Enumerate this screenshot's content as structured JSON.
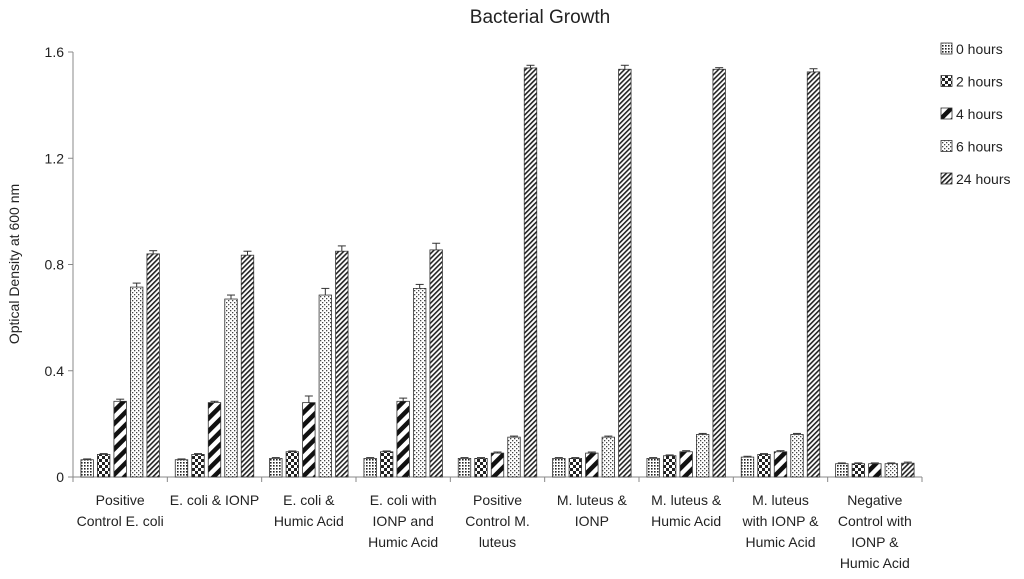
{
  "chart_data": {
    "type": "bar",
    "title": "Bacterial Growth",
    "xlabel": "",
    "ylabel": "Optical Density at 600 nm",
    "ylim": [
      0,
      1.6
    ],
    "yticks": [
      0,
      0.4,
      0.8,
      1.2,
      1.6
    ],
    "ytick_labels": [
      "0",
      "0.4",
      "0.8",
      "1.2",
      "1.6"
    ],
    "grid": false,
    "legend_position": "top-right",
    "categories": [
      [
        "Positive",
        "Control E. coli"
      ],
      [
        "E. coli & IONP"
      ],
      [
        "E. coli &",
        "Humic Acid"
      ],
      [
        "E. coli with",
        "IONP and",
        "Humic Acid"
      ],
      [
        "Positive",
        "Control M.",
        "luteus"
      ],
      [
        "M. luteus &",
        "IONP"
      ],
      [
        "M. luteus &",
        "Humic Acid"
      ],
      [
        "M. luteus",
        "with IONP &",
        "Humic Acid"
      ],
      [
        "Negative",
        "Control with",
        "IONP &",
        "Humic Acid"
      ]
    ],
    "series": [
      {
        "name": "0 hours",
        "pattern": "dots-dense",
        "values": [
          0.065,
          0.065,
          0.07,
          0.07,
          0.07,
          0.07,
          0.07,
          0.075,
          0.05
        ],
        "errors": [
          0.003,
          0.003,
          0.003,
          0.003,
          0.003,
          0.003,
          0.003,
          0.003,
          0.003
        ]
      },
      {
        "name": "2 hours",
        "pattern": "checker",
        "values": [
          0.085,
          0.085,
          0.095,
          0.095,
          0.07,
          0.07,
          0.08,
          0.085,
          0.05
        ],
        "errors": [
          0.003,
          0.003,
          0.003,
          0.003,
          0.003,
          0.003,
          0.003,
          0.003,
          0.003
        ]
      },
      {
        "name": "4 hours",
        "pattern": "diagonal-wide",
        "values": [
          0.285,
          0.28,
          0.28,
          0.285,
          0.09,
          0.09,
          0.095,
          0.095,
          0.05
        ],
        "errors": [
          0.008,
          0.005,
          0.025,
          0.012,
          0.004,
          0.004,
          0.004,
          0.004,
          0.003
        ]
      },
      {
        "name": "6 hours",
        "pattern": "dots-sparse",
        "values": [
          0.715,
          0.67,
          0.685,
          0.71,
          0.15,
          0.15,
          0.16,
          0.16,
          0.05
        ],
        "errors": [
          0.015,
          0.015,
          0.025,
          0.015,
          0.004,
          0.004,
          0.004,
          0.004,
          0.003
        ]
      },
      {
        "name": "24 hours",
        "pattern": "diagonal-dense",
        "values": [
          0.84,
          0.835,
          0.85,
          0.855,
          1.54,
          1.535,
          1.535,
          1.525,
          0.052
        ],
        "errors": [
          0.012,
          0.015,
          0.02,
          0.025,
          0.01,
          0.015,
          0.006,
          0.012,
          0.004
        ]
      }
    ]
  }
}
